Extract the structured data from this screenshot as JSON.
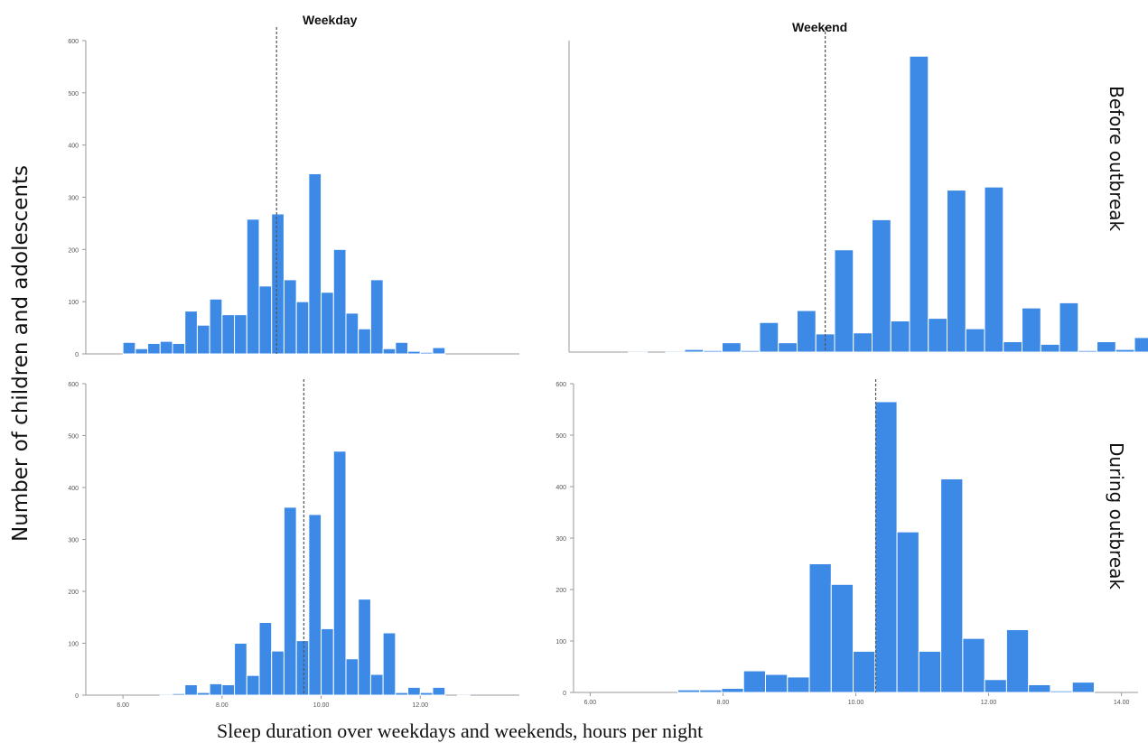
{
  "figure": {
    "col_titles": [
      "Weekday",
      "Weekend"
    ],
    "row_labels": [
      "Before outbreak",
      "During outbreak"
    ],
    "ylabel": "Number of children and adolescents",
    "xlabel": "Sleep duration over weekdays and weekends, hours per night",
    "bar_color": "#3c8ae6",
    "mean_line_color": "#555555"
  },
  "chart_data": [
    {
      "type": "bar",
      "panel": "Before outbreak / Weekday",
      "title": "Weekday",
      "row_label": "Before outbreak",
      "bin_width": 0.25,
      "bin_start": 6.0,
      "values": [
        22,
        10,
        20,
        24,
        20,
        82,
        55,
        105,
        75,
        75,
        258,
        130,
        268,
        142,
        100,
        345,
        118,
        200,
        78,
        48,
        142,
        10,
        22,
        5,
        3,
        12,
        0,
        0,
        0,
        0
      ],
      "mean": 9.1,
      "ylim": [
        0,
        600
      ],
      "yticks": [
        0,
        100,
        200,
        300,
        400,
        500,
        600
      ],
      "xticks": []
    },
    {
      "type": "bar",
      "panel": "Before outbreak / Weekend",
      "title": "Weekend",
      "row_label": "Before outbreak",
      "bin_width": 0.3,
      "bin_start": 6.4,
      "values": [
        0,
        2,
        0,
        2,
        5,
        3,
        18,
        3,
        57,
        18,
        80,
        35,
        197,
        37,
        255,
        60,
        570,
        65,
        312,
        45,
        318,
        20,
        85,
        15,
        95,
        3,
        20,
        5,
        28,
        0,
        0,
        0
      ],
      "mean": 9.85,
      "ylim": [
        0,
        600
      ],
      "yticks": [],
      "xticks": []
    },
    {
      "type": "bar",
      "panel": "During outbreak / Weekday",
      "title": "",
      "row_label": "During outbreak",
      "bin_width": 0.25,
      "bin_start": 6.0,
      "values": [
        0,
        0,
        0,
        2,
        3,
        20,
        5,
        22,
        20,
        100,
        38,
        140,
        85,
        362,
        105,
        348,
        128,
        470,
        70,
        185,
        40,
        120,
        5,
        15,
        5,
        15,
        0,
        2,
        0,
        0
      ],
      "mean": 9.65,
      "ylim": [
        0,
        600
      ],
      "yticks": [
        0,
        100,
        200,
        300,
        400,
        500,
        600
      ],
      "xticks": [
        6.0,
        8.0,
        10.0,
        12.0
      ]
    },
    {
      "type": "bar",
      "panel": "During outbreak / Weekend",
      "title": "",
      "row_label": "During outbreak",
      "bin_width": 0.33,
      "bin_start": 6.0,
      "values": [
        0,
        0,
        0,
        0,
        5,
        5,
        8,
        42,
        35,
        30,
        250,
        210,
        80,
        565,
        312,
        80,
        415,
        105,
        25,
        122,
        15,
        3,
        20,
        0,
        0
      ],
      "mean": 10.3,
      "ylim": [
        0,
        600
      ],
      "yticks": [
        0,
        100,
        200,
        300,
        400,
        500,
        600
      ],
      "xticks": [
        6.0,
        8.0,
        10.0,
        12.0,
        14.0
      ]
    }
  ]
}
